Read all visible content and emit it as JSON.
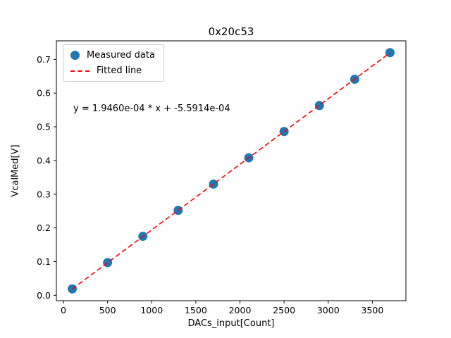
{
  "title": "0x20c53",
  "annotation": "y = 1.9460e-04 * x + -5.5914e-04",
  "legend": {
    "items": [
      {
        "label": "Measured data",
        "icon": "circle-marker-icon"
      },
      {
        "label": "Fitted line",
        "icon": "dashed-line-icon"
      }
    ],
    "position": "upper left"
  },
  "colors": {
    "marker": "#1f77b4",
    "fit_line": "#ff0000",
    "axis": "#000000",
    "background": "#ffffff"
  },
  "chart_data": {
    "type": "scatter",
    "title": "0x20c53",
    "xlabel": "DACs_input[Count]",
    "ylabel": "VcalMed[V]",
    "series": [
      {
        "name": "Measured data",
        "x": [
          100,
          500,
          900,
          1300,
          1700,
          2100,
          2500,
          2900,
          3300,
          3700
        ],
        "y": [
          0.019,
          0.097,
          0.175,
          0.252,
          0.33,
          0.408,
          0.486,
          0.563,
          0.641,
          0.72
        ]
      }
    ],
    "fit": {
      "name": "Fitted line",
      "slope": 0.0001946,
      "intercept": -0.00055914,
      "x_start": 100,
      "x_end": 3700
    },
    "xticks": [
      0,
      500,
      1000,
      1500,
      2000,
      2500,
      3000,
      3500
    ],
    "xtick_labels": [
      "0",
      "500",
      "1000",
      "1500",
      "2000",
      "2500",
      "3000",
      "3500"
    ],
    "yticks": [
      0.0,
      0.1,
      0.2,
      0.3,
      0.4,
      0.5,
      0.6,
      0.7
    ],
    "ytick_labels": [
      "0.0",
      "0.1",
      "0.2",
      "0.3",
      "0.4",
      "0.5",
      "0.6",
      "0.7"
    ],
    "xlim": [
      -80,
      3880
    ],
    "ylim": [
      -0.016,
      0.755
    ],
    "grid": false,
    "legend_position": "upper left"
  }
}
